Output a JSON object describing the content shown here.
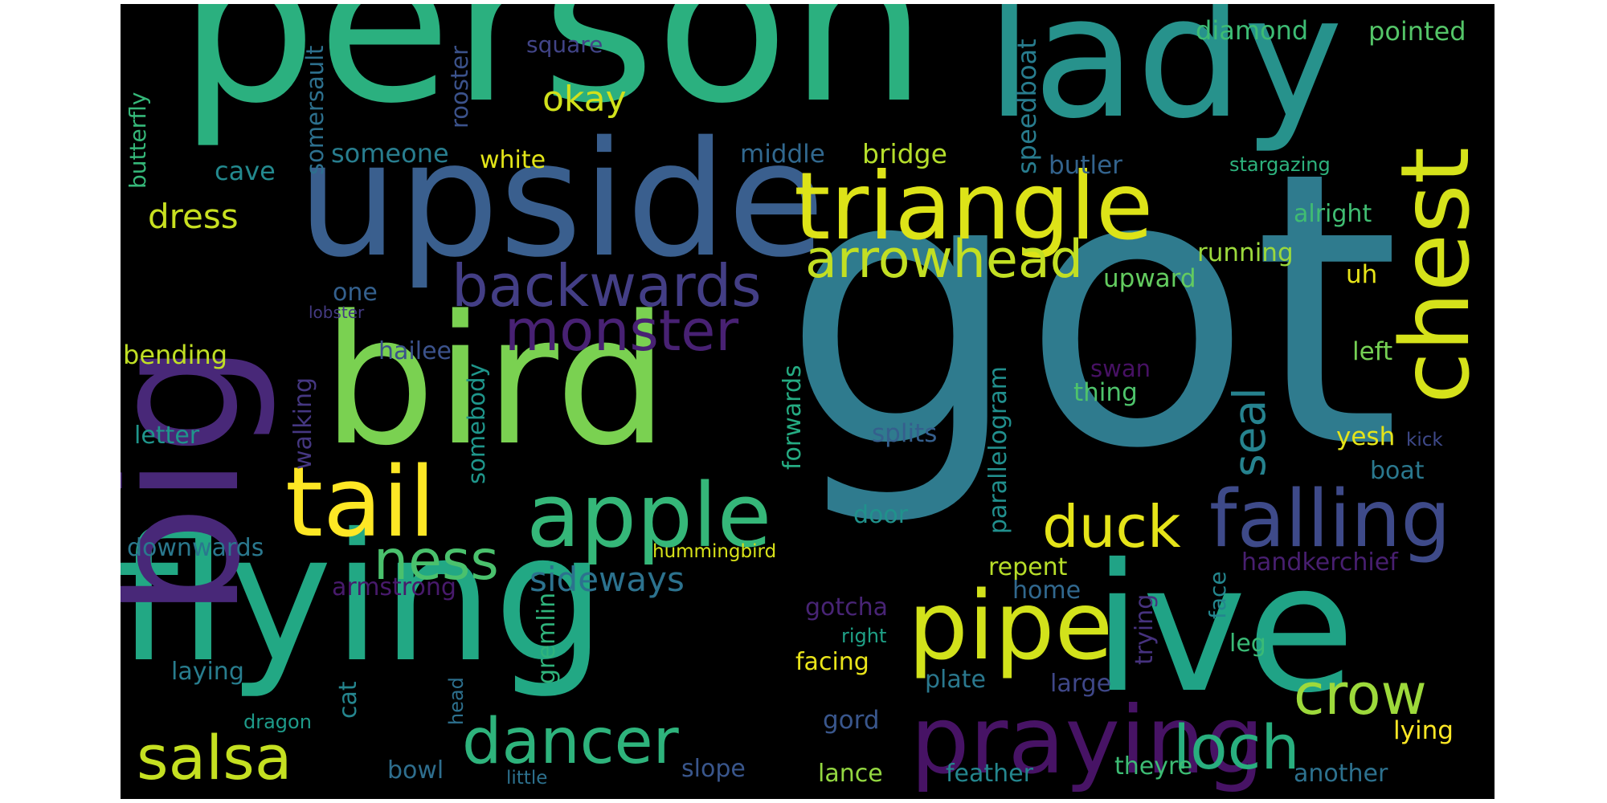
{
  "words": [
    {
      "id": "got",
      "text": "got",
      "color": "#2f7b8e"
    },
    {
      "id": "person",
      "text": "person",
      "color": "#2bb07f"
    },
    {
      "id": "flying",
      "text": "flying",
      "color": "#22a884"
    },
    {
      "id": "bird",
      "text": "bird",
      "color": "#7ad151"
    },
    {
      "id": "upside",
      "text": "upside",
      "color": "#3a5f8e"
    },
    {
      "id": "lady",
      "text": "lady",
      "color": "#27928c"
    },
    {
      "id": "big",
      "text": "big",
      "color": "#482878"
    },
    {
      "id": "ive",
      "text": "ive",
      "color": "#20a386"
    },
    {
      "id": "triangle",
      "text": "triangle",
      "color": "#dde318"
    },
    {
      "id": "chest",
      "text": "chest",
      "color": "#d5e21a"
    },
    {
      "id": "praying",
      "text": "praying",
      "color": "#471365"
    },
    {
      "id": "tail",
      "text": "tail",
      "color": "#fde725"
    },
    {
      "id": "apple",
      "text": "apple",
      "color": "#35b779"
    },
    {
      "id": "pipe",
      "text": "pipe",
      "color": "#d2e21b"
    },
    {
      "id": "falling",
      "text": "falling",
      "color": "#3e4a89"
    },
    {
      "id": "arrowhead",
      "text": "arrowhead",
      "color": "#c2df23"
    },
    {
      "id": "backwards",
      "text": "backwards",
      "color": "#433e85"
    },
    {
      "id": "monster",
      "text": "monster",
      "color": "#482173"
    },
    {
      "id": "dancer",
      "text": "dancer",
      "color": "#2eb37c"
    },
    {
      "id": "salsa",
      "text": "salsa",
      "color": "#c5e021"
    },
    {
      "id": "loch",
      "text": "loch",
      "color": "#29af7f"
    },
    {
      "id": "crow",
      "text": "crow",
      "color": "#9dd93b"
    },
    {
      "id": "duck",
      "text": "duck",
      "color": "#e5e419"
    },
    {
      "id": "ness",
      "text": "ness",
      "color": "#4ac16d"
    },
    {
      "id": "seal",
      "text": "seal",
      "color": "#26828e"
    },
    {
      "id": "sideways",
      "text": "sideways",
      "color": "#2c728e"
    },
    {
      "id": "okay",
      "text": "okay",
      "color": "#d0e11c"
    },
    {
      "id": "dress",
      "text": "dress",
      "color": "#c8e020"
    },
    {
      "id": "somersault",
      "text": "somersault",
      "color": "#2d708e"
    },
    {
      "id": "rooster",
      "text": "rooster",
      "color": "#3b528b"
    },
    {
      "id": "butterfly",
      "text": "butterfly",
      "color": "#35b779"
    },
    {
      "id": "square",
      "text": "square",
      "color": "#414487"
    },
    {
      "id": "cave",
      "text": "cave",
      "color": "#23898e"
    },
    {
      "id": "someone",
      "text": "someone",
      "color": "#287d8e"
    },
    {
      "id": "white",
      "text": "white",
      "color": "#e2e418"
    },
    {
      "id": "middle",
      "text": "middle",
      "color": "#31688e"
    },
    {
      "id": "bridge",
      "text": "bridge",
      "color": "#b5de2b"
    },
    {
      "id": "speedboat",
      "text": "speedboat",
      "color": "#287c8e"
    },
    {
      "id": "diamond",
      "text": "diamond",
      "color": "#3dbc74"
    },
    {
      "id": "pointed",
      "text": "pointed",
      "color": "#54c568"
    },
    {
      "id": "butler",
      "text": "butler",
      "color": "#33638d"
    },
    {
      "id": "stargazing",
      "text": "stargazing",
      "color": "#2db27d"
    },
    {
      "id": "alright",
      "text": "alright",
      "color": "#40bd72"
    },
    {
      "id": "running",
      "text": "running",
      "color": "#9bd93c"
    },
    {
      "id": "upward",
      "text": "upward",
      "color": "#63cb5f"
    },
    {
      "id": "uh",
      "text": "uh",
      "color": "#e7e419"
    },
    {
      "id": "one",
      "text": "one",
      "color": "#34608d"
    },
    {
      "id": "lobster",
      "text": "lobster",
      "color": "#443a83"
    },
    {
      "id": "hailee",
      "text": "hailee",
      "color": "#3b528b"
    },
    {
      "id": "bending",
      "text": "bending",
      "color": "#c0df25"
    },
    {
      "id": "walking",
      "text": "walking",
      "color": "#453781"
    },
    {
      "id": "letter",
      "text": "letter",
      "color": "#1f958b"
    },
    {
      "id": "forwards",
      "text": "forwards",
      "color": "#25ab82"
    },
    {
      "id": "parallelogram",
      "text": "parallelogram",
      "color": "#218f8d"
    },
    {
      "id": "swan",
      "text": "swan",
      "color": "#471164"
    },
    {
      "id": "thing",
      "text": "thing",
      "color": "#4ec36b"
    },
    {
      "id": "left",
      "text": "left",
      "color": "#75d054"
    },
    {
      "id": "somebody",
      "text": "somebody",
      "color": "#1f968b"
    },
    {
      "id": "splits",
      "text": "splits",
      "color": "#355f8d"
    },
    {
      "id": "yesh",
      "text": "yesh",
      "color": "#e5e419"
    },
    {
      "id": "kick",
      "text": "kick",
      "color": "#3e4989"
    },
    {
      "id": "boat",
      "text": "boat",
      "color": "#2a788e"
    },
    {
      "id": "door",
      "text": "door",
      "color": "#20928c"
    },
    {
      "id": "downwards",
      "text": "downwards",
      "color": "#2a788e"
    },
    {
      "id": "hummingbird",
      "text": "hummingbird",
      "color": "#d8e219"
    },
    {
      "id": "handkerchief",
      "text": "handkerchief",
      "color": "#481f70"
    },
    {
      "id": "armstrong",
      "text": "armstrong",
      "color": "#481a6c"
    },
    {
      "id": "gremlin",
      "text": "gremlin",
      "color": "#2fb47c"
    },
    {
      "id": "repent",
      "text": "repent",
      "color": "#b8de29"
    },
    {
      "id": "home",
      "text": "home",
      "color": "#31688e"
    },
    {
      "id": "trying",
      "text": "trying",
      "color": "#46327e"
    },
    {
      "id": "face",
      "text": "face",
      "color": "#24868e"
    },
    {
      "id": "gotcha",
      "text": "gotcha",
      "color": "#482475"
    },
    {
      "id": "right",
      "text": "right",
      "color": "#1fa187"
    },
    {
      "id": "leg",
      "text": "leg",
      "color": "#3aba76"
    },
    {
      "id": "laying",
      "text": "laying",
      "color": "#287d8e"
    },
    {
      "id": "facing",
      "text": "facing",
      "color": "#eae51a"
    },
    {
      "id": "plate",
      "text": "plate",
      "color": "#2a788e"
    },
    {
      "id": "large",
      "text": "large",
      "color": "#3f4788"
    },
    {
      "id": "cat",
      "text": "cat",
      "color": "#25858e"
    },
    {
      "id": "head",
      "text": "head",
      "color": "#2d708e"
    },
    {
      "id": "dragon",
      "text": "dragon",
      "color": "#1e9b8a"
    },
    {
      "id": "gord",
      "text": "gord",
      "color": "#39568c"
    },
    {
      "id": "lying",
      "text": "lying",
      "color": "#fde725"
    },
    {
      "id": "bowl",
      "text": "bowl",
      "color": "#2e6e8e"
    },
    {
      "id": "little",
      "text": "little",
      "color": "#2d718e"
    },
    {
      "id": "slope",
      "text": "slope",
      "color": "#39568c"
    },
    {
      "id": "lance",
      "text": "lance",
      "color": "#93d741"
    },
    {
      "id": "feather",
      "text": "feather",
      "color": "#24868e"
    },
    {
      "id": "theyre",
      "text": "theyre",
      "color": "#3dbc74"
    },
    {
      "id": "another",
      "text": "another",
      "color": "#2d718e"
    }
  ]
}
